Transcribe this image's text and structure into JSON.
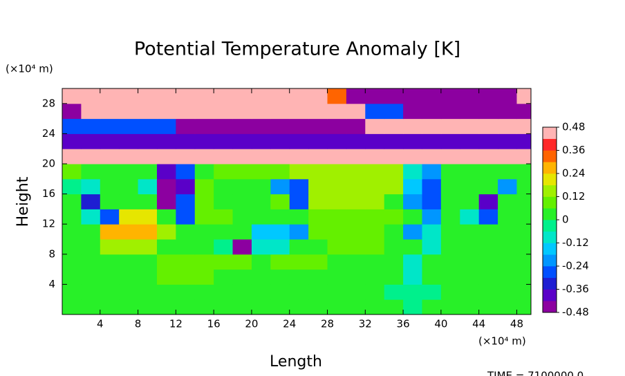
{
  "chart_data": {
    "type": "heatmap",
    "title": "Potential Temperature Anomaly [K]",
    "xlabel": "Length",
    "ylabel": "Height",
    "x_unit": "(×10⁴ m)",
    "y_unit": "(×10⁴ m)",
    "footer": "TIME = 7100000.0",
    "xlim": [
      0,
      49.5
    ],
    "ylim": [
      0,
      30
    ],
    "xticks": [
      4,
      8,
      12,
      16,
      20,
      24,
      28,
      32,
      36,
      40,
      44,
      48
    ],
    "yticks": [
      4,
      8,
      12,
      16,
      20,
      24,
      28
    ],
    "x_bins": [
      0,
      2,
      4,
      6,
      8,
      10,
      12,
      14,
      16,
      18,
      20,
      22,
      24,
      26,
      28,
      30,
      32,
      34,
      36,
      38,
      40,
      42,
      44,
      46,
      48,
      50
    ],
    "y_bins": [
      0,
      2,
      4,
      6,
      8,
      10,
      12,
      14,
      16,
      18,
      20,
      22,
      24,
      26,
      28,
      30
    ],
    "z": [
      [
        0.02,
        0.03,
        0.03,
        0.03,
        0.03,
        0.03,
        0.03,
        0.03,
        0.03,
        0.03,
        0.03,
        0.03,
        0.03,
        0.03,
        0.03,
        0.03,
        0.03,
        0.03,
        -0.03,
        0.03,
        0.03,
        0.03,
        0.03,
        0.03,
        0.03
      ],
      [
        0.02,
        0.03,
        0.03,
        0.03,
        0.03,
        0.03,
        0.03,
        0.03,
        0.03,
        0.03,
        0.03,
        0.03,
        0.03,
        0.03,
        0.03,
        0.03,
        0.03,
        -0.05,
        -0.05,
        -0.05,
        0.03,
        0.03,
        0.03,
        0.03,
        0.03
      ],
      [
        0.03,
        0.03,
        0.03,
        0.03,
        0.03,
        0.08,
        0.08,
        0.08,
        0.03,
        0.03,
        0.03,
        0.03,
        0.03,
        0.03,
        0.03,
        0.03,
        0.03,
        0.03,
        -0.08,
        0.03,
        0.03,
        0.03,
        0.03,
        0.03,
        0.03
      ],
      [
        0.0,
        0.03,
        0.03,
        0.03,
        0.03,
        0.08,
        0.08,
        0.08,
        0.08,
        0.08,
        0.03,
        0.08,
        0.1,
        0.08,
        0.03,
        0.03,
        0.03,
        0.03,
        -0.1,
        0.03,
        0.03,
        0.03,
        0.03,
        0.03,
        0.03
      ],
      [
        0.03,
        0.03,
        0.15,
        0.15,
        0.15,
        0.03,
        0.03,
        0.03,
        -0.05,
        -0.45,
        -0.1,
        -0.1,
        0.03,
        0.03,
        0.08,
        0.08,
        0.08,
        0.03,
        0.03,
        -0.1,
        0.03,
        0.03,
        0.03,
        0.03,
        0.03
      ],
      [
        0.03,
        0.03,
        0.28,
        0.28,
        0.28,
        0.15,
        0.03,
        0.03,
        0.03,
        0.03,
        -0.15,
        -0.15,
        -0.2,
        0.08,
        0.08,
        0.08,
        0.08,
        0.03,
        -0.2,
        -0.1,
        0.03,
        0.03,
        0.03,
        0.03,
        0.03
      ],
      [
        0.03,
        -0.1,
        -0.3,
        0.2,
        0.2,
        0.03,
        -0.3,
        0.1,
        0.1,
        0.03,
        0.03,
        0.03,
        0.03,
        0.1,
        0.1,
        0.1,
        0.1,
        0.1,
        0.03,
        -0.2,
        0.03,
        -0.1,
        -0.3,
        0.03,
        0.03
      ],
      [
        0.03,
        -0.35,
        0.05,
        0.03,
        0.03,
        -0.45,
        -0.3,
        0.1,
        0.03,
        0.03,
        0.03,
        0.1,
        -0.25,
        0.12,
        0.12,
        0.12,
        0.12,
        0.03,
        -0.2,
        -0.3,
        0.03,
        0.03,
        -0.38,
        0.03,
        0.03
      ],
      [
        -0.05,
        -0.1,
        0.03,
        0.03,
        -0.1,
        -0.45,
        -0.4,
        0.1,
        0.03,
        0.03,
        0.03,
        -0.2,
        -0.3,
        0.18,
        0.18,
        0.18,
        0.18,
        0.12,
        -0.15,
        -0.3,
        0.05,
        0.05,
        0.03,
        -0.2,
        0.03
      ],
      [
        0.08,
        0.03,
        0.03,
        0.03,
        0.03,
        -0.38,
        -0.3,
        0.03,
        0.1,
        0.1,
        0.1,
        0.1,
        0.15,
        0.15,
        0.15,
        0.15,
        0.15,
        0.15,
        -0.1,
        -0.2,
        0.03,
        0.03,
        0.03,
        0.03,
        0.03
      ],
      [
        0.45,
        0.45,
        0.45,
        0.45,
        0.45,
        0.45,
        0.45,
        0.45,
        0.45,
        0.45,
        0.45,
        0.45,
        0.45,
        0.45,
        0.45,
        0.45,
        0.45,
        0.45,
        0.45,
        0.45,
        0.45,
        0.45,
        0.45,
        0.45,
        0.45
      ],
      [
        -0.42,
        -0.42,
        -0.42,
        -0.42,
        -0.42,
        -0.42,
        -0.42,
        -0.42,
        -0.42,
        -0.42,
        -0.42,
        -0.42,
        -0.42,
        -0.42,
        -0.42,
        -0.42,
        -0.42,
        -0.42,
        -0.42,
        -0.42,
        -0.42,
        -0.42,
        -0.42,
        -0.42,
        -0.42
      ],
      [
        -0.3,
        -0.3,
        -0.3,
        -0.3,
        -0.3,
        -0.3,
        -0.45,
        -0.45,
        -0.45,
        -0.45,
        -0.45,
        -0.45,
        -0.45,
        -0.45,
        -0.45,
        -0.45,
        0.45,
        0.45,
        0.45,
        0.45,
        0.45,
        0.45,
        0.45,
        0.45,
        0.45
      ],
      [
        -0.45,
        0.45,
        0.45,
        0.45,
        0.45,
        0.45,
        0.45,
        0.45,
        0.45,
        0.45,
        0.45,
        0.45,
        0.45,
        0.45,
        0.45,
        0.45,
        -0.3,
        -0.3,
        -0.45,
        -0.45,
        -0.45,
        -0.45,
        -0.45,
        -0.45,
        -0.45
      ],
      [
        0.45,
        0.45,
        0.45,
        0.45,
        0.45,
        0.45,
        0.45,
        0.45,
        0.45,
        0.45,
        0.45,
        0.45,
        0.45,
        0.45,
        0.3,
        -0.45,
        -0.45,
        -0.45,
        -0.45,
        -0.45,
        -0.45,
        -0.45,
        -0.45,
        -0.45,
        0.45
      ]
    ],
    "colorbar": {
      "lim": [
        -0.48,
        0.48
      ],
      "ticks": [
        0.48,
        0.36,
        0.24,
        0.12,
        0,
        -0.12,
        -0.24,
        -0.36,
        -0.48
      ],
      "colors": [
        "#8c00a0",
        "#5a00c8",
        "#1e1ed2",
        "#0050ff",
        "#0096ff",
        "#00c8ff",
        "#00e6c8",
        "#00f08c",
        "#28f028",
        "#64f000",
        "#a0f000",
        "#e6e600",
        "#ffb400",
        "#ff6400",
        "#ff2828",
        "#ffb4b4"
      ]
    }
  }
}
